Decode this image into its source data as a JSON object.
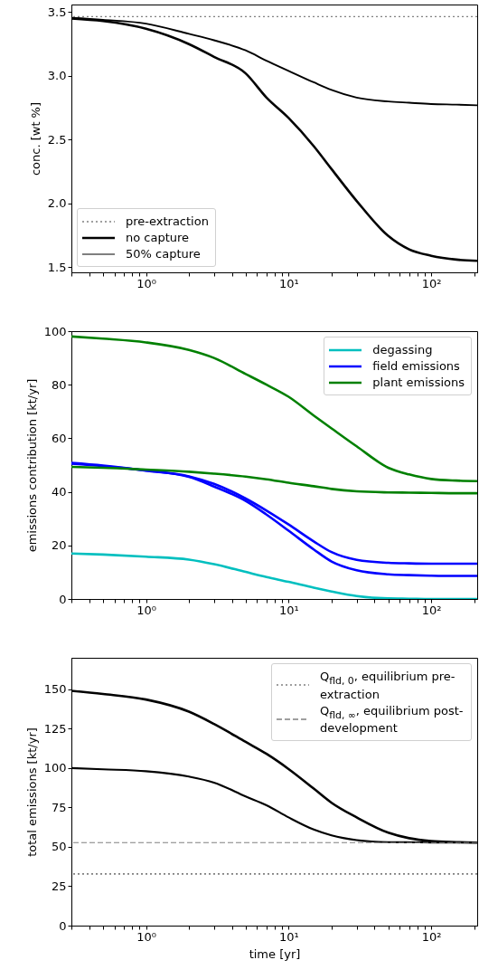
{
  "chart_data": [
    {
      "type": "line",
      "ylabel": "conc. [wt %]",
      "log": "x",
      "grid": false,
      "legend": "bottom left",
      "xlim": [
        0.3,
        210
      ],
      "ylim": [
        1.46,
        3.56
      ],
      "xticks": [
        {
          "value": 0.3,
          "label": null
        },
        {
          "value": 0.4,
          "label": null
        },
        {
          "value": 0.5,
          "label": null
        },
        {
          "value": 0.6,
          "label": null
        },
        {
          "value": 0.7,
          "label": null
        },
        {
          "value": 0.8,
          "label": null
        },
        {
          "value": 0.9,
          "label": null
        },
        {
          "value": 1,
          "label": "10⁰"
        },
        {
          "value": 2,
          "label": null
        },
        {
          "value": 3,
          "label": null
        },
        {
          "value": 4,
          "label": null
        },
        {
          "value": 5,
          "label": null
        },
        {
          "value": 6,
          "label": null
        },
        {
          "value": 7,
          "label": null
        },
        {
          "value": 8,
          "label": null
        },
        {
          "value": 9,
          "label": null
        },
        {
          "value": 10,
          "label": "10¹"
        },
        {
          "value": 20,
          "label": null
        },
        {
          "value": 30,
          "label": null
        },
        {
          "value": 40,
          "label": null
        },
        {
          "value": 50,
          "label": null
        },
        {
          "value": 60,
          "label": null
        },
        {
          "value": 70,
          "label": null
        },
        {
          "value": 80,
          "label": null
        },
        {
          "value": 90,
          "label": null
        },
        {
          "value": 100,
          "label": "10²"
        },
        {
          "value": 200,
          "label": null
        }
      ],
      "yticks": [
        1.5,
        {
          "value": 2,
          "label": "2.0"
        },
        2.5,
        {
          "value": 3,
          "label": "3.0"
        },
        3.5
      ],
      "x": [
        0.3,
        0.5,
        1,
        2,
        3,
        5,
        7,
        10,
        15,
        20,
        30,
        50,
        70,
        100,
        150,
        210
      ],
      "ref_lines": [
        {
          "axis": "y",
          "value": 3.465,
          "label": "pre-extraction",
          "color": "#808080",
          "line_style": "dotted"
        }
      ],
      "series": [
        {
          "name": "no capture",
          "color": "#000000",
          "values": [
            3.45,
            3.43,
            3.37,
            3.25,
            3.15,
            3.02,
            2.83,
            2.67,
            2.45,
            2.27,
            2.02,
            1.745,
            1.64,
            1.59,
            1.56,
            1.55
          ]
        },
        {
          "name": "50% capture",
          "color": "#000000",
          "values": [
            3.455,
            3.44,
            3.41,
            3.33,
            3.28,
            3.2,
            3.12,
            3.04,
            2.95,
            2.89,
            2.83,
            2.8,
            2.79,
            2.78,
            2.775,
            2.77
          ]
        }
      ]
    },
    {
      "type": "line",
      "ylabel": "emissions contribution [kt/yr]",
      "log": "x",
      "grid": false,
      "legend": "top right",
      "xlim": [
        0.3,
        210
      ],
      "ylim": [
        0,
        100
      ],
      "xticks": [
        {
          "value": 0.3,
          "label": null
        },
        {
          "value": 0.4,
          "label": null
        },
        {
          "value": 0.5,
          "label": null
        },
        {
          "value": 0.6,
          "label": null
        },
        {
          "value": 0.7,
          "label": null
        },
        {
          "value": 0.8,
          "label": null
        },
        {
          "value": 0.9,
          "label": null
        },
        {
          "value": 1,
          "label": "10⁰"
        },
        {
          "value": 2,
          "label": null
        },
        {
          "value": 3,
          "label": null
        },
        {
          "value": 4,
          "label": null
        },
        {
          "value": 5,
          "label": null
        },
        {
          "value": 6,
          "label": null
        },
        {
          "value": 7,
          "label": null
        },
        {
          "value": 8,
          "label": null
        },
        {
          "value": 9,
          "label": null
        },
        {
          "value": 10,
          "label": "10¹"
        },
        {
          "value": 20,
          "label": null
        },
        {
          "value": 30,
          "label": null
        },
        {
          "value": 40,
          "label": null
        },
        {
          "value": 50,
          "label": null
        },
        {
          "value": 60,
          "label": null
        },
        {
          "value": 70,
          "label": null
        },
        {
          "value": 80,
          "label": null
        },
        {
          "value": 90,
          "label": null
        },
        {
          "value": 100,
          "label": "10²"
        },
        {
          "value": 200,
          "label": null
        }
      ],
      "yticks": [
        0,
        20,
        40,
        60,
        80,
        100
      ],
      "x": [
        0.3,
        0.5,
        1,
        2,
        3,
        5,
        7,
        10,
        15,
        20,
        30,
        50,
        70,
        100,
        150,
        210
      ],
      "series": [
        {
          "name": "degassing",
          "color": "#00bfbf",
          "values": [
            17,
            16.6,
            15.8,
            14.7,
            13,
            10.1,
            8.2,
            6.4,
            4.2,
            2.8,
            1.1,
            0.2,
            0.1,
            0,
            0,
            0
          ]
        },
        {
          "name": "field emissions",
          "color": "#0000ff",
          "values": [
            50.8,
            49.8,
            47.9,
            45.6,
            42,
            36.6,
            31.5,
            25.5,
            18.5,
            14,
            10.7,
            9.2,
            8.9,
            8.7,
            8.6,
            8.6
          ]
        },
        {
          "name": "plant emissions",
          "color": "#008000",
          "values": [
            98,
            97.2,
            95.8,
            93,
            90,
            84,
            80,
            75.5,
            68.5,
            63.7,
            57,
            49,
            46.5,
            44.8,
            44.2,
            44
          ]
        },
        {
          "color": "#0000ff",
          "values": [
            50.5,
            49.6,
            48,
            45.8,
            43,
            37.5,
            33,
            27.8,
            21.5,
            17.5,
            14.6,
            13.5,
            13.3,
            13.2,
            13.2,
            13.2
          ]
        },
        {
          "color": "#008000",
          "values": [
            49.3,
            49,
            48.3,
            47.5,
            46.8,
            45.7,
            44.7,
            43.4,
            42.1,
            41.1,
            40.2,
            39.8,
            39.7,
            39.6,
            39.5,
            39.5
          ]
        }
      ]
    },
    {
      "type": "line",
      "xlabel": "time [yr]",
      "ylabel": "total emissions [kt/yr]",
      "log": "x",
      "grid": false,
      "legend": "top right",
      "xlim": [
        0.3,
        210
      ],
      "ylim": [
        0,
        170
      ],
      "xticks": [
        {
          "value": 0.3,
          "label": null
        },
        {
          "value": 0.4,
          "label": null
        },
        {
          "value": 0.5,
          "label": null
        },
        {
          "value": 0.6,
          "label": null
        },
        {
          "value": 0.7,
          "label": null
        },
        {
          "value": 0.8,
          "label": null
        },
        {
          "value": 0.9,
          "label": null
        },
        {
          "value": 1,
          "label": "10⁰"
        },
        {
          "value": 2,
          "label": null
        },
        {
          "value": 3,
          "label": null
        },
        {
          "value": 4,
          "label": null
        },
        {
          "value": 5,
          "label": null
        },
        {
          "value": 6,
          "label": null
        },
        {
          "value": 7,
          "label": null
        },
        {
          "value": 8,
          "label": null
        },
        {
          "value": 9,
          "label": null
        },
        {
          "value": 10,
          "label": "10¹"
        },
        {
          "value": 20,
          "label": null
        },
        {
          "value": 30,
          "label": null
        },
        {
          "value": 40,
          "label": null
        },
        {
          "value": 50,
          "label": null
        },
        {
          "value": 60,
          "label": null
        },
        {
          "value": 70,
          "label": null
        },
        {
          "value": 80,
          "label": null
        },
        {
          "value": 90,
          "label": null
        },
        {
          "value": 100,
          "label": "10²"
        },
        {
          "value": 200,
          "label": null
        }
      ],
      "yticks": [
        0,
        25,
        50,
        75,
        100,
        125,
        150
      ],
      "x": [
        0.3,
        0.5,
        1,
        2,
        3,
        5,
        7,
        10,
        15,
        20,
        30,
        50,
        70,
        100,
        150,
        210
      ],
      "ref_lines": [
        {
          "axis": "y",
          "value": 32.8,
          "label": "Q$_{fld, 0}$, equilibrium pre-extraction",
          "color": "#808080",
          "line_style": "dotted"
        },
        {
          "axis": "y",
          "value": 52.7,
          "label": "Q$_{fld, ∞}$, equilibrium post-development",
          "color": "#808080",
          "line_style": "dashed"
        }
      ],
      "series": [
        {
          "color": "#000000",
          "values": [
            149,
            147,
            143.5,
            135.8,
            128,
            116.6,
            109,
            99.4,
            87,
            78,
            68.7,
            59,
            55.5,
            53.7,
            53,
            52.7
          ]
        },
        {
          "color": "#000000",
          "values": [
            100,
            99.2,
            98,
            94.6,
            90.8,
            82,
            76.4,
            68.7,
            61,
            57.3,
            54.3,
            53,
            52.9,
            52.8,
            52.7,
            52.7
          ]
        }
      ]
    }
  ]
}
